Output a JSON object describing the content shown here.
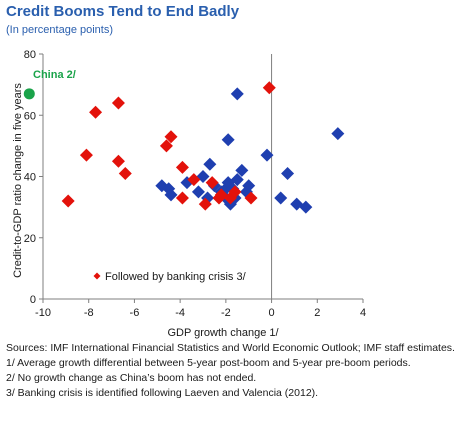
{
  "header": {
    "title": "Credit Booms Tend to End Badly",
    "subtitle": "(In percentage points)"
  },
  "colors": {
    "no_crisis": "#1f3fb0",
    "crisis": "#e3120b",
    "china": "#1aa34a",
    "axis": "#7f7f7f"
  },
  "chart_data": {
    "type": "scatter",
    "xlabel": "GDP growth change 1/",
    "ylabel": "Credit-to-GDP ratio change in five years",
    "xlim": [
      -10,
      4
    ],
    "ylim": [
      0,
      80
    ],
    "xticks": [
      -10,
      -8,
      -6,
      -4,
      -2,
      0,
      2,
      4
    ],
    "yticks": [
      0,
      20,
      40,
      60,
      80
    ],
    "grid": false,
    "legend": {
      "label": "Followed by banking crisis 3/",
      "placement": "bottom-left"
    },
    "annotation": {
      "label": "China 2/",
      "x": -10.6,
      "y": 67
    },
    "series": [
      {
        "marker": "blue-diamond",
        "points": [
          [
            -4.8,
            37
          ],
          [
            -4.5,
            36
          ],
          [
            -4.4,
            34
          ],
          [
            -3.7,
            38
          ],
          [
            -3.2,
            35
          ],
          [
            -3.0,
            40
          ],
          [
            -2.7,
            44
          ],
          [
            -2.8,
            33
          ],
          [
            -2.5,
            37
          ],
          [
            -2.2,
            35
          ],
          [
            -2.0,
            36
          ],
          [
            -1.9,
            38
          ],
          [
            -2.0,
            33
          ],
          [
            -1.8,
            31
          ],
          [
            -1.7,
            36
          ],
          [
            -1.5,
            39
          ],
          [
            -1.6,
            33
          ],
          [
            -1.3,
            42
          ],
          [
            -1.1,
            35
          ],
          [
            -1.0,
            37
          ],
          [
            -1.5,
            67
          ],
          [
            -1.9,
            52
          ],
          [
            -0.2,
            47
          ],
          [
            0.4,
            33
          ],
          [
            0.7,
            41
          ],
          [
            1.1,
            31
          ],
          [
            1.5,
            30
          ],
          [
            2.9,
            54
          ]
        ]
      },
      {
        "marker": "red-diamond",
        "points": [
          [
            -8.9,
            32
          ],
          [
            -8.1,
            47
          ],
          [
            -7.7,
            61
          ],
          [
            -6.7,
            64
          ],
          [
            -6.7,
            45
          ],
          [
            -6.4,
            41
          ],
          [
            -4.6,
            50
          ],
          [
            -4.4,
            53
          ],
          [
            -3.9,
            43
          ],
          [
            -3.9,
            33
          ],
          [
            -3.4,
            39
          ],
          [
            -2.9,
            31
          ],
          [
            -2.6,
            38
          ],
          [
            -2.3,
            33
          ],
          [
            -2.2,
            34
          ],
          [
            -1.8,
            33
          ],
          [
            -1.6,
            35
          ],
          [
            -0.9,
            33
          ],
          [
            -0.1,
            69
          ]
        ]
      }
    ]
  },
  "notes": [
    "Sources: IMF International Financial Statistics and World Economic Outlook; IMF staff estimates.",
    "1/ Average growth differential between 5-year post-boom and 5-year pre-boom periods.",
    "2/ No growth change as China’s boom has not ended.",
    "3/ Banking crisis is identified following Laeven and Valencia (2012)."
  ]
}
